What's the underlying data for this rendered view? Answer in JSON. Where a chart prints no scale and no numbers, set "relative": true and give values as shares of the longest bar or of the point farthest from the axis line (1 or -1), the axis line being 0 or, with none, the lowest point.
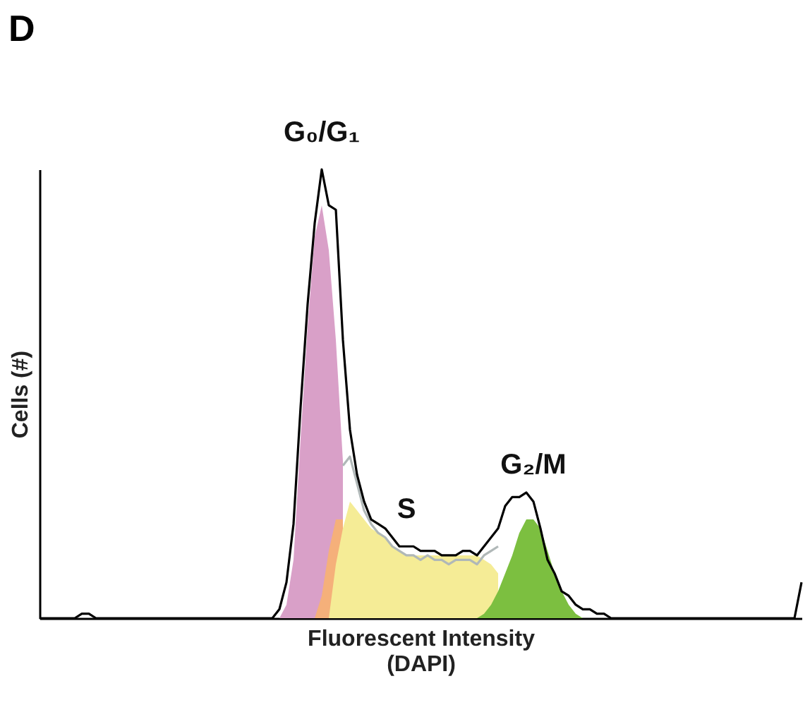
{
  "chart_data": {
    "type": "area",
    "title": "D",
    "xlabel": "Fluorescent Intensity\n(DAPI)",
    "ylabel": "Cells (#)",
    "relative": true,
    "categories": [
      null,
      null,
      null,
      null,
      null,
      null,
      null,
      null,
      null,
      null,
      null,
      null,
      null,
      null,
      null,
      null,
      null,
      null,
      null,
      null,
      null,
      null,
      null,
      null,
      null,
      null,
      null,
      null,
      null,
      null,
      null,
      null,
      null,
      null,
      null,
      null,
      null,
      null,
      null,
      null,
      null,
      null,
      null,
      null,
      null,
      null,
      null,
      null,
      null,
      null,
      null,
      null,
      null,
      null,
      null,
      null,
      null,
      null,
      null,
      null,
      null,
      null,
      null,
      null,
      null,
      null,
      null,
      null,
      null,
      null,
      null,
      null,
      null,
      null,
      null,
      null,
      null,
      null,
      null,
      null,
      null,
      null,
      null,
      null,
      null,
      null,
      null,
      null,
      null,
      null,
      null,
      null,
      null,
      null,
      null,
      null,
      null,
      null,
      null,
      null,
      null,
      null,
      null,
      null,
      null,
      null,
      null,
      null,
      null
    ],
    "series": [
      {
        "name": "G₀/G₁",
        "color": "#d9a0c8",
        "values": [
          null,
          null,
          null,
          null,
          null,
          null,
          null,
          null,
          null,
          null,
          null,
          null,
          null,
          null,
          null,
          null,
          null,
          null,
          null,
          null,
          null,
          null,
          null,
          null,
          null,
          null,
          null,
          null,
          null,
          null,
          null,
          null,
          null,
          null,
          0,
          0.03,
          0.13,
          0.4,
          0.65,
          0.85,
          0.92,
          0.82,
          0.62,
          0.35,
          null,
          null,
          null,
          null,
          null,
          null,
          null,
          null,
          null,
          null,
          null,
          null,
          null,
          null,
          null,
          null,
          null,
          null,
          null,
          null,
          null,
          null,
          null,
          null,
          null,
          null,
          null,
          null,
          null,
          null,
          null,
          null,
          null,
          null,
          null,
          null,
          null,
          null,
          null,
          null,
          null,
          null,
          null,
          null,
          null,
          null,
          null,
          null,
          null,
          null,
          null,
          null,
          null,
          null,
          null,
          null,
          null,
          null,
          null,
          null,
          null,
          null,
          null,
          null,
          null
        ]
      },
      {
        "color": "#f5b07a",
        "values": [
          null,
          null,
          null,
          null,
          null,
          null,
          null,
          null,
          null,
          null,
          null,
          null,
          null,
          null,
          null,
          null,
          null,
          null,
          null,
          null,
          null,
          null,
          null,
          null,
          null,
          null,
          null,
          null,
          null,
          null,
          null,
          null,
          null,
          null,
          null,
          null,
          null,
          null,
          null,
          0,
          0.05,
          0.15,
          0.22,
          0.22,
          null,
          null,
          null,
          null,
          null,
          null,
          null,
          null,
          null,
          null,
          null,
          null,
          null,
          null,
          null,
          null,
          null,
          null,
          null,
          null,
          null,
          null,
          null,
          null,
          null,
          null,
          null,
          null,
          null,
          null,
          null,
          null,
          null,
          null,
          null,
          null,
          null,
          null,
          null,
          null,
          null,
          null,
          null,
          null,
          null,
          null,
          null,
          null,
          null,
          null,
          null,
          null,
          null,
          null,
          null,
          null,
          null,
          null,
          null,
          null,
          null,
          null,
          null,
          null,
          null
        ]
      },
      {
        "name": "S",
        "color": "#f5ec96",
        "values": [
          null,
          null,
          null,
          null,
          null,
          null,
          null,
          null,
          null,
          null,
          null,
          null,
          null,
          null,
          null,
          null,
          null,
          null,
          null,
          null,
          null,
          null,
          null,
          null,
          null,
          null,
          null,
          null,
          null,
          null,
          null,
          null,
          null,
          null,
          null,
          null,
          null,
          null,
          null,
          null,
          null,
          0,
          0.12,
          0.2,
          0.26,
          0.24,
          0.22,
          0.2,
          0.19,
          0.18,
          0.16,
          0.15,
          0.14,
          0.14,
          0.14,
          0.14,
          0.14,
          0.14,
          0.14,
          0.14,
          0.14,
          0.14,
          0.14,
          0.13,
          0.12,
          0.1,
          null,
          null,
          null,
          null,
          null,
          null,
          null,
          null,
          null,
          null,
          null,
          null,
          null,
          null,
          null,
          null,
          null,
          null,
          null,
          null,
          null,
          null,
          null,
          null,
          null,
          null,
          null,
          null,
          null,
          null,
          null,
          null,
          null,
          null,
          null,
          null,
          null,
          null,
          null,
          null,
          null,
          null,
          null
        ]
      },
      {
        "name": "G₂/M",
        "color": "#7cbf40",
        "values": [
          null,
          null,
          null,
          null,
          null,
          null,
          null,
          null,
          null,
          null,
          null,
          null,
          null,
          null,
          null,
          null,
          null,
          null,
          null,
          null,
          null,
          null,
          null,
          null,
          null,
          null,
          null,
          null,
          null,
          null,
          null,
          null,
          null,
          null,
          null,
          null,
          null,
          null,
          null,
          null,
          null,
          null,
          null,
          null,
          null,
          null,
          null,
          null,
          null,
          null,
          null,
          null,
          null,
          null,
          null,
          null,
          null,
          null,
          null,
          null,
          null,
          null,
          0,
          0.01,
          0.03,
          0.06,
          0.1,
          0.14,
          0.19,
          0.22,
          0.22,
          0.2,
          0.15,
          0.1,
          0.06,
          0.03,
          0.01,
          0,
          null,
          null,
          null,
          null,
          null,
          null,
          null,
          null,
          null,
          null,
          null,
          null,
          null,
          null,
          null,
          null,
          null,
          null,
          null,
          null,
          null,
          null,
          null,
          null,
          null,
          null,
          null,
          null,
          null,
          null,
          null
        ]
      },
      {
        "type": "line",
        "color": "#b0b8b8",
        "values": [
          null,
          null,
          null,
          null,
          null,
          null,
          null,
          null,
          null,
          null,
          null,
          null,
          null,
          null,
          null,
          null,
          null,
          null,
          null,
          null,
          null,
          null,
          null,
          null,
          null,
          null,
          null,
          null,
          null,
          null,
          null,
          null,
          null,
          null,
          null,
          null,
          null,
          null,
          null,
          null,
          null,
          null,
          null,
          0.34,
          0.36,
          0.3,
          0.24,
          0.21,
          0.19,
          0.18,
          0.16,
          0.15,
          0.14,
          0.14,
          0.13,
          0.14,
          0.13,
          0.13,
          0.12,
          0.13,
          0.13,
          0.13,
          0.12,
          0.14,
          0.15,
          0.16,
          null,
          null,
          null,
          null,
          null,
          null,
          null,
          null,
          null,
          null,
          null,
          null,
          null,
          null,
          null,
          null,
          null,
          null,
          null,
          null,
          null,
          null,
          null,
          null,
          null,
          null,
          null,
          null,
          null,
          null,
          null,
          null,
          null,
          null,
          null,
          null,
          null,
          null,
          null,
          null,
          null,
          null,
          null
        ]
      },
      {
        "type": "line",
        "color": "#000000",
        "values": [
          0,
          0,
          0,
          0,
          0,
          0,
          0.01,
          0.01,
          0,
          0,
          0,
          0,
          0,
          0,
          0,
          0,
          0,
          0,
          0,
          0,
          0,
          0,
          0,
          0,
          0,
          0,
          0,
          0,
          0,
          0,
          0,
          0,
          0,
          0,
          0.02,
          0.08,
          0.21,
          0.47,
          0.7,
          0.88,
          1,
          0.92,
          0.91,
          0.62,
          0.42,
          0.32,
          0.26,
          0.22,
          0.21,
          0.2,
          0.18,
          0.16,
          0.16,
          0.16,
          0.15,
          0.15,
          0.15,
          0.14,
          0.14,
          0.14,
          0.15,
          0.15,
          0.14,
          0.16,
          0.18,
          0.2,
          0.25,
          0.27,
          0.27,
          0.28,
          0.26,
          0.2,
          0.13,
          0.1,
          0.06,
          0.05,
          0.03,
          0.02,
          0.02,
          0.01,
          0.01,
          0,
          0,
          0,
          0,
          0,
          0,
          0,
          0,
          0,
          0,
          0,
          0,
          0,
          0,
          0,
          0,
          0,
          0,
          0,
          0,
          0,
          0,
          0,
          0,
          0,
          0,
          0,
          0.08
        ]
      }
    ]
  }
}
